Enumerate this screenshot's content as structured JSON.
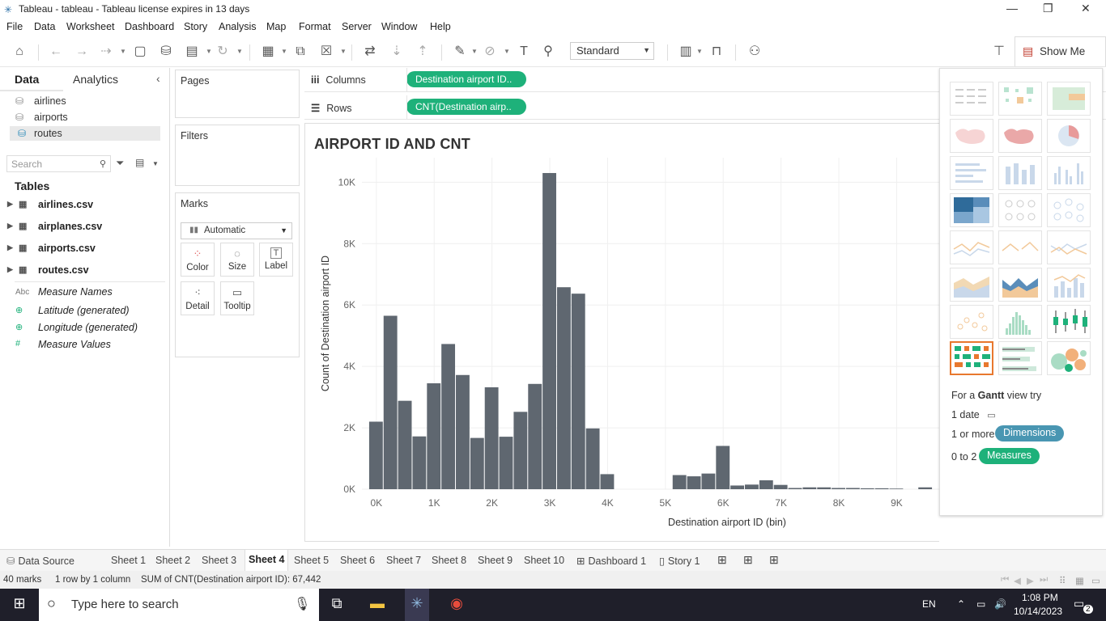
{
  "window": {
    "title": "Tableau - tableau - Tableau license expires in 13 days",
    "controls": {
      "minimize": "—",
      "restore": "❐",
      "close": "✕"
    }
  },
  "menu": [
    "File",
    "Data",
    "Worksheet",
    "Dashboard",
    "Story",
    "Analysis",
    "Map",
    "Format",
    "Server",
    "Window",
    "Help"
  ],
  "toolbar": {
    "fit_dropdown": "Standard",
    "show_me_label": "Show Me"
  },
  "data_pane": {
    "tabs": [
      "Data",
      "Analytics"
    ],
    "datasources": [
      "airlines",
      "airports",
      "routes"
    ],
    "selected_datasource": "routes",
    "search_placeholder": "Search",
    "tables_header": "Tables",
    "tables": [
      "airlines.csv",
      "airplanes.csv",
      "airports.csv",
      "routes.csv"
    ],
    "fields": [
      {
        "prefix": "Abc",
        "name": "Measure Names"
      },
      {
        "prefix": "⊕",
        "name": "Latitude (generated)"
      },
      {
        "prefix": "⊕",
        "name": "Longitude (generated)"
      },
      {
        "prefix": "#",
        "name": "Measure Values"
      }
    ]
  },
  "cards": {
    "pages": "Pages",
    "filters": "Filters",
    "marks": "Marks",
    "mark_type": "Automatic",
    "mark_buttons": [
      "Color",
      "Size",
      "Label",
      "Detail",
      "Tooltip"
    ]
  },
  "shelves": {
    "columns_label": "Columns",
    "columns_pill": "Destination airport ID..",
    "rows_label": "Rows",
    "rows_pill": "CNT(Destination airp.."
  },
  "view": {
    "title": "AIRPORT ID AND CNT"
  },
  "chart_data": {
    "type": "bar",
    "xlabel": "Destination airport ID (bin)",
    "ylabel": "Count of Destination airport ID",
    "x_ticks": [
      "0K",
      "1K",
      "2K",
      "3K",
      "4K",
      "5K",
      "6K",
      "7K",
      "8K",
      "9K",
      "10"
    ],
    "y_ticks": [
      "0K",
      "2K",
      "4K",
      "6K",
      "8K",
      "10K"
    ],
    "ylim": [
      0,
      10800
    ],
    "xlim": [
      -250,
      9750
    ],
    "bin_width": 250,
    "bin_starts": [
      0,
      250,
      500,
      750,
      1000,
      1250,
      1500,
      1750,
      2000,
      2250,
      2500,
      2750,
      3000,
      3250,
      3500,
      3750,
      4000,
      4250,
      5250,
      5500,
      5750,
      6000,
      6250,
      6500,
      6750,
      7000,
      7250,
      7500,
      7750,
      8000,
      8250,
      8500,
      8750,
      9000,
      9500
    ],
    "values": [
      2200,
      5650,
      2880,
      1720,
      3450,
      4730,
      3720,
      1670,
      3320,
      1710,
      2520,
      3430,
      10300,
      6580,
      6370,
      1980,
      490,
      0,
      460,
      420,
      510,
      1410,
      120,
      150,
      290,
      140,
      40,
      60,
      60,
      40,
      40,
      30,
      30,
      20,
      60
    ],
    "bar_color": "#5f6770",
    "grid": true
  },
  "show_me": {
    "hint_prefix": "For a",
    "hint_chart": "Gantt",
    "hint_suffix": "view try",
    "req_date": "1 date",
    "req_dims_prefix": "1 or more",
    "req_dims_badge": "Dimensions",
    "req_meas_prefix": "0 to 2",
    "req_meas_badge": "Measures",
    "dims_color": "#4996b2",
    "meas_color": "#1eb17a"
  },
  "sheet_tabs": [
    "Data Source",
    "Sheet 1",
    "Sheet 2",
    "Sheet 3",
    "Sheet 4",
    "Sheet 5",
    "Sheet 6",
    "Sheet 7",
    "Sheet 8",
    "Sheet 9",
    "Sheet 10",
    "Dashboard 1",
    "Story 1"
  ],
  "active_sheet": "Sheet 4",
  "status": {
    "marks": "40 marks",
    "rows": "1 row by 1 column",
    "sum": "SUM of CNT(Destination airport ID): 67,442"
  },
  "taskbar": {
    "search_placeholder": "Type here to search",
    "lang": "EN",
    "time": "1:08 PM",
    "date": "10/14/2023",
    "notifications": "2"
  }
}
